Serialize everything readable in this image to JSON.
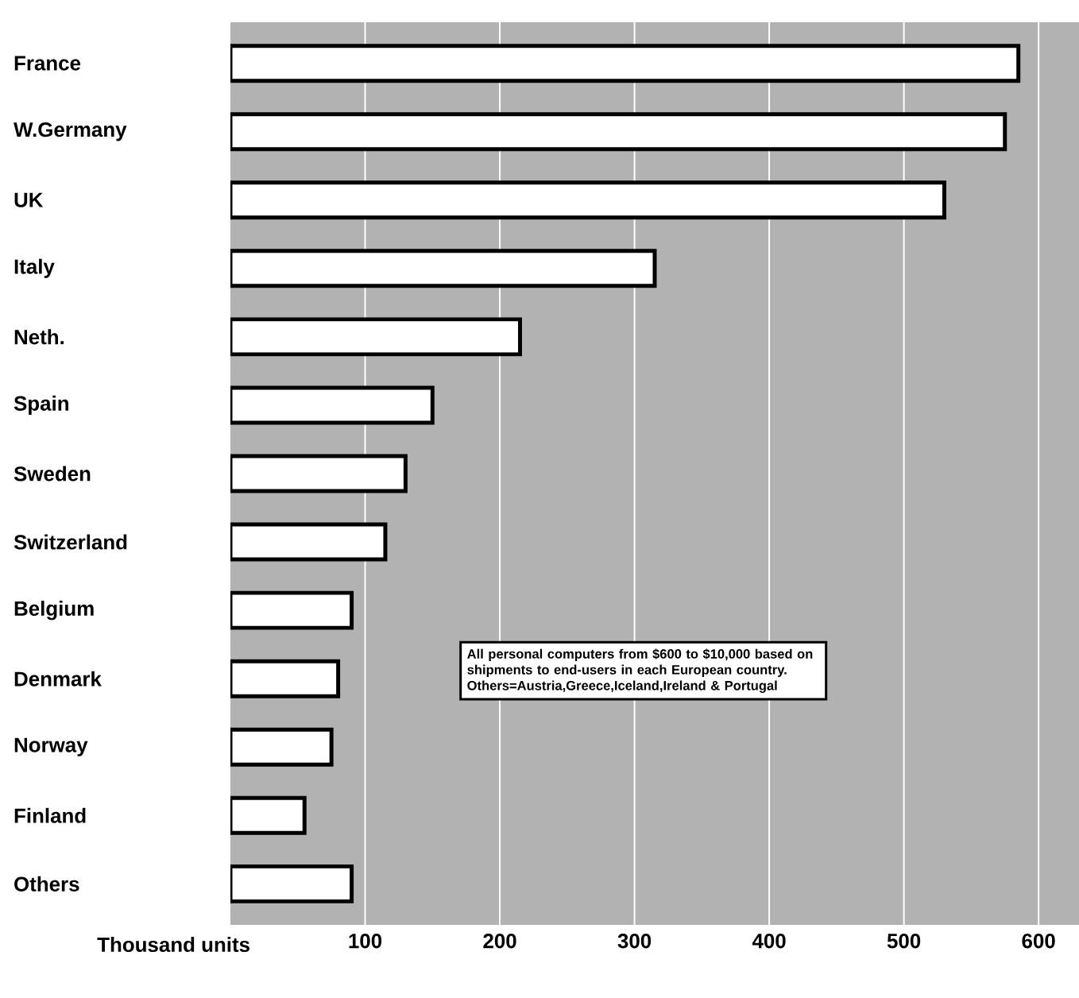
{
  "chart_data": {
    "type": "bar",
    "orientation": "horizontal",
    "xlabel": "Thousand units",
    "categories": [
      "France",
      "W.Germany",
      "UK",
      "Italy",
      "Neth.",
      "Spain",
      "Sweden",
      "Switzerland",
      "Belgium",
      "Denmark",
      "Norway",
      "Finland",
      "Others"
    ],
    "values": [
      585,
      575,
      530,
      315,
      215,
      150,
      130,
      115,
      90,
      80,
      75,
      55,
      90
    ],
    "color": "#ffffff",
    "xlim": [
      0,
      630
    ],
    "xticks": [
      100,
      200,
      300,
      400,
      500,
      600
    ],
    "grid": "x",
    "annotations": [
      "All personal computers from $600 to $10,000 based on shipments to end-users in each European country.",
      "Others=Austria,Greece,Iceland,Ireland & Portugal"
    ]
  }
}
